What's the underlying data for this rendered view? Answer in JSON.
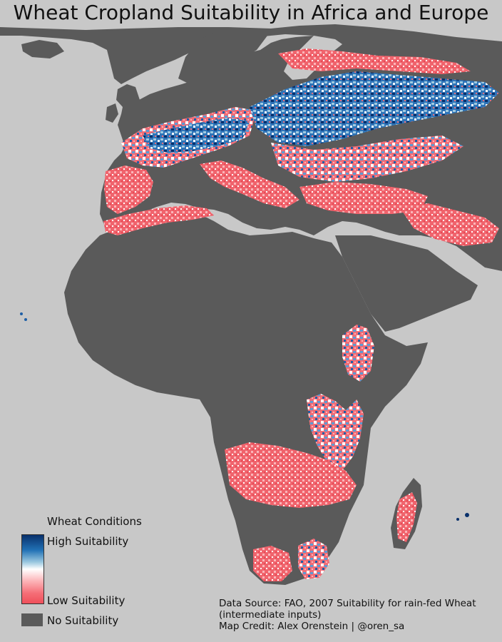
{
  "title": "Wheat Cropland Suitability in Africa and Europe",
  "legend": {
    "title": "Wheat Conditions",
    "high_label": "High Suitability",
    "low_label": "Low Suitability",
    "none_label": "No Suitability"
  },
  "credits": {
    "source_line1": "Data Source: FAO, 2007 Suitability for rain-fed Wheat",
    "source_line2": "(intermediate inputs)",
    "credit_line": "Map Credit: Alex Orenstein  | @oren_sa"
  },
  "colors": {
    "background": "#c8c8c8",
    "land_no_suitability": "#5a5a5a",
    "high_suitability": "#08306b",
    "mid": "#ffffff",
    "low_suitability": "#ef4f5a"
  }
}
